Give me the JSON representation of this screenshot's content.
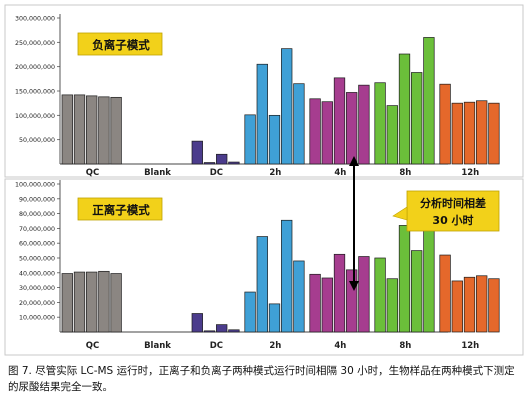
{
  "chart_data": [
    {
      "type": "bar",
      "title": "负离子模式",
      "categories": [
        "QC",
        "Blank",
        "DC",
        "2h",
        "4h",
        "8h",
        "12h"
      ],
      "ylim": [
        0,
        300000000
      ],
      "yticks": [
        "50,000,000",
        "100,000,000",
        "150,000,000",
        "200,000,000",
        "250,000,000",
        "300,000,000"
      ],
      "ytick_values": [
        50000000,
        100000000,
        150000000,
        200000000,
        250000000,
        300000000
      ],
      "grid": false,
      "groups": [
        {
          "name": "QC",
          "color": "#8b8682",
          "values": [
            142000000,
            142000000,
            140000000,
            138000000,
            137000000
          ]
        },
        {
          "name": "Blank",
          "color": "#5c4a8f",
          "values": [
            0,
            0,
            0,
            0,
            0
          ]
        },
        {
          "name": "DC",
          "color": "#4b3c8c",
          "values": [
            47000000,
            3000000,
            20000000,
            4000000
          ]
        },
        {
          "name": "2h",
          "color": "#3fa0d6",
          "values": [
            101000000,
            205000000,
            100000000,
            237000000,
            165000000
          ]
        },
        {
          "name": "4h",
          "color": "#a63d8f",
          "values": [
            134000000,
            128000000,
            177000000,
            147000000,
            162000000
          ]
        },
        {
          "name": "8h",
          "color": "#6bbf3a",
          "values": [
            167000000,
            120000000,
            226000000,
            188000000,
            260000000
          ]
        },
        {
          "name": "12h",
          "color": "#e5682b",
          "values": [
            164000000,
            125000000,
            127000000,
            130000000,
            125000000
          ]
        }
      ]
    },
    {
      "type": "bar",
      "title": "正离子模式",
      "categories": [
        "QC",
        "Blank",
        "DC",
        "2h",
        "4h",
        "8h",
        "12h"
      ],
      "ylim": [
        0,
        100000000
      ],
      "yticks": [
        "10,000,000",
        "20,000,000",
        "30,000,000",
        "40,000,000",
        "50,000,000",
        "60,000,000",
        "70,000,000",
        "80,000,000",
        "90,000,000",
        "100,000,000"
      ],
      "ytick_values": [
        10000000,
        20000000,
        30000000,
        40000000,
        50000000,
        60000000,
        70000000,
        80000000,
        90000000,
        100000000
      ],
      "grid": false,
      "groups": [
        {
          "name": "QC",
          "color": "#8b8682",
          "values": [
            39500000,
            40500000,
            40500000,
            41000000,
            39500000
          ]
        },
        {
          "name": "Blank",
          "color": "#5c4a8f",
          "values": [
            0,
            0,
            0,
            0,
            0
          ]
        },
        {
          "name": "DC",
          "color": "#4b3c8c",
          "values": [
            12500000,
            800000,
            5000000,
            1500000
          ]
        },
        {
          "name": "2h",
          "color": "#3fa0d6",
          "values": [
            27000000,
            64500000,
            19000000,
            75500000,
            48000000
          ]
        },
        {
          "name": "4h",
          "color": "#a63d8f",
          "values": [
            39000000,
            36500000,
            52500000,
            42000000,
            51000000
          ]
        },
        {
          "name": "8h",
          "color": "#6bbf3a",
          "values": [
            50000000,
            36000000,
            72000000,
            55000000,
            86000000
          ]
        },
        {
          "name": "12h",
          "color": "#e5682b",
          "values": [
            52000000,
            34500000,
            37000000,
            38000000,
            36000000
          ]
        }
      ]
    }
  ],
  "annotation": {
    "lines": [
      "分析时间相差",
      "30 小时"
    ]
  },
  "caption": "图 7. 尽管实际 LC-MS 运行时，正离子和负离子两种模式运行时间相隔 30 小时，生物样品在两种模式下测定的尿酸结果完全一致。",
  "colors": {
    "title_box": "#f2d11a",
    "annotation_box": "#f2d11a",
    "panel_border": "#c9c9c9"
  }
}
